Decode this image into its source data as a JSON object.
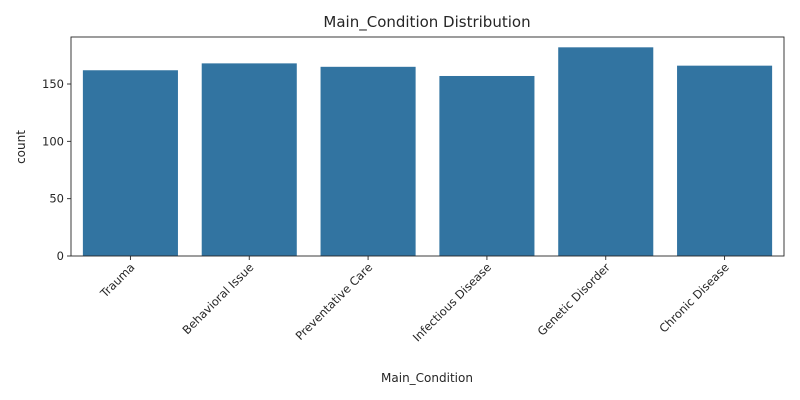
{
  "chart_data": {
    "type": "bar",
    "title": "Main_Condition Distribution",
    "xlabel": "Main_Condition",
    "ylabel": "count",
    "categories": [
      "Trauma",
      "Behavioral Issue",
      "Preventative Care",
      "Infectious Disease",
      "Genetic Disorder",
      "Chronic Disease"
    ],
    "values": [
      162,
      168,
      165,
      157,
      182,
      166
    ],
    "ylim": [
      0,
      191
    ],
    "yticks": [
      0,
      50,
      100,
      150
    ],
    "color": "#3274a1",
    "grid": false,
    "legend": "none"
  }
}
